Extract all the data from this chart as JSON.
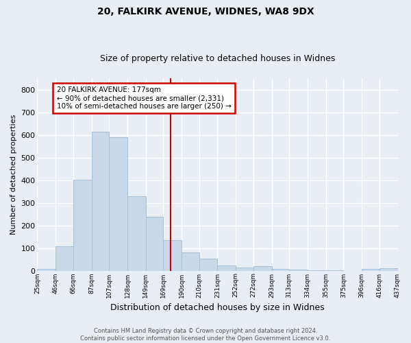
{
  "title1": "20, FALKIRK AVENUE, WIDNES, WA8 9DX",
  "title2": "Size of property relative to detached houses in Widnes",
  "xlabel": "Distribution of detached houses by size in Widnes",
  "ylabel": "Number of detached properties",
  "footer1": "Contains HM Land Registry data © Crown copyright and database right 2024.",
  "footer2": "Contains public sector information licensed under the Open Government Licence v3.0.",
  "bin_edges": [
    25,
    46,
    66,
    87,
    107,
    128,
    149,
    169,
    190,
    210,
    231,
    252,
    272,
    293,
    313,
    334,
    355,
    375,
    396,
    416,
    437
  ],
  "bin_labels": [
    "25sqm",
    "46sqm",
    "66sqm",
    "87sqm",
    "107sqm",
    "128sqm",
    "149sqm",
    "169sqm",
    "190sqm",
    "210sqm",
    "231sqm",
    "252sqm",
    "272sqm",
    "293sqm",
    "313sqm",
    "334sqm",
    "355sqm",
    "375sqm",
    "396sqm",
    "416sqm",
    "437sqm"
  ],
  "counts": [
    8,
    107,
    403,
    614,
    590,
    330,
    237,
    135,
    79,
    52,
    24,
    15,
    19,
    8,
    5,
    2,
    1,
    0,
    8,
    10
  ],
  "bar_color": "#c8d8e8",
  "bar_edge_color": "#a8c0d4",
  "vline_x": 177,
  "vline_color": "#cc0000",
  "annotation_title": "20 FALKIRK AVENUE: 177sqm",
  "annotation_line2": "← 90% of detached houses are smaller (2,331)",
  "annotation_line3": "10% of semi-detached houses are larger (250) →",
  "annotation_box_color": "#cc0000",
  "bg_color": "#e8eef4",
  "ylim": [
    0,
    850
  ],
  "yticks": [
    0,
    100,
    200,
    300,
    400,
    500,
    600,
    700,
    800
  ]
}
